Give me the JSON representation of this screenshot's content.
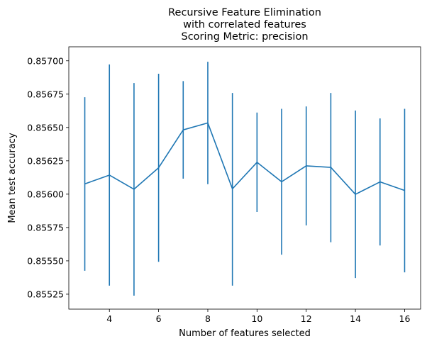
{
  "chart_data": {
    "type": "line",
    "title_lines": [
      "Recursive Feature Elimination",
      "with correlated features",
      "Scoring Metric: precision"
    ],
    "xlabel": "Number of features selected",
    "ylabel": "Mean test accuracy",
    "xlim": [
      2.35,
      16.65
    ],
    "ylim": [
      0.855138,
      0.857105
    ],
    "xticks": [
      4,
      6,
      8,
      10,
      12,
      14,
      16
    ],
    "xtick_labels": [
      "4",
      "6",
      "8",
      "10",
      "12",
      "14",
      "16"
    ],
    "yticks": [
      0.85525,
      0.8555,
      0.85575,
      0.856,
      0.85625,
      0.8565,
      0.85675,
      0.857
    ],
    "ytick_labels": [
      "0.85525",
      "0.85550",
      "0.85575",
      "0.85600",
      "0.85625",
      "0.85650",
      "0.85675",
      "0.85700"
    ],
    "grid": false,
    "series": [
      {
        "color": "#1f77b4",
        "x": [
          3,
          4,
          5,
          6,
          7,
          8,
          9,
          10,
          11,
          12,
          13,
          14,
          15,
          16
        ],
        "y": [
          0.856077,
          0.856143,
          0.856037,
          0.856198,
          0.856482,
          0.856534,
          0.85604,
          0.856239,
          0.856093,
          0.856212,
          0.856201,
          0.855999,
          0.856092,
          0.856028
        ],
        "err_low": [
          0.855426,
          0.855314,
          0.855239,
          0.855493,
          0.856116,
          0.856075,
          0.855314,
          0.855866,
          0.855546,
          0.855766,
          0.85564,
          0.855371,
          0.855615,
          0.855414
        ],
        "err_high": [
          0.856727,
          0.856973,
          0.856833,
          0.856903,
          0.856848,
          0.856993,
          0.856759,
          0.856612,
          0.85664,
          0.856658,
          0.856759,
          0.856627,
          0.856568,
          0.85664
        ]
      }
    ]
  }
}
